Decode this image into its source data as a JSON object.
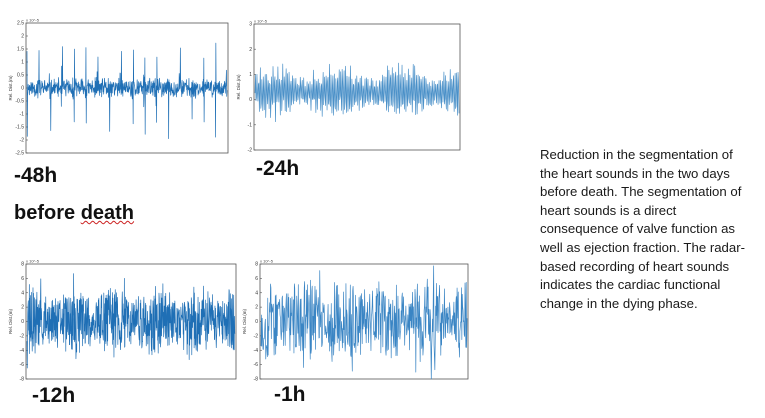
{
  "chart_data": [
    {
      "type": "line",
      "label": "-48h",
      "ylabel": "Rel. Dist.(m)",
      "exponent": "x 10^-5",
      "yticks": [
        "2.5",
        "2",
        "1.5",
        "1",
        "0.5",
        "0",
        "-0.5",
        "-1",
        "-1.5",
        "-2",
        "-2.5"
      ],
      "ylim": [
        -2.5,
        2.5
      ],
      "color": "#1f6fb5",
      "waveform": {
        "pattern": "periodic-spikes",
        "spike_count": 17,
        "spike_amplitude": 2.0,
        "baseline_amplitude": 0.3
      }
    },
    {
      "type": "line",
      "label": "-24h",
      "ylabel": "Rel. Dist.(m)",
      "exponent": "x 10^-5",
      "yticks": [
        "3",
        "2",
        "1",
        "0",
        "-1",
        "-2"
      ],
      "ylim": [
        -3,
        3.5
      ],
      "color": "#4a90c8",
      "waveform": {
        "pattern": "dense-oscillation",
        "amplitude": 1.5,
        "baseline_amplitude": 0.5
      }
    },
    {
      "type": "line",
      "label": "-12h",
      "ylabel": "Rel. Dist.(m)",
      "exponent": "x 10^-5",
      "yticks": [
        "8",
        "6",
        "4",
        "2",
        "0",
        "-2",
        "-4",
        "-6",
        "-8"
      ],
      "ylim": [
        -8,
        8
      ],
      "color": "#1f6fb5",
      "waveform": {
        "pattern": "dense-noise",
        "amplitude": 4.5,
        "baseline_amplitude": 1.5
      }
    },
    {
      "type": "line",
      "label": "-1h",
      "ylabel": "Rel. Dist.(m)",
      "exponent": "x 10^-5",
      "yticks": [
        "8",
        "6",
        "4",
        "2",
        "0",
        "-2",
        "-4",
        "-6",
        "-8"
      ],
      "ylim": [
        -8,
        8
      ],
      "color": "#3a85c4",
      "waveform": {
        "pattern": "dense-noise",
        "amplitude": 5.5,
        "baseline_amplitude": 2.0
      }
    }
  ],
  "subtitle": {
    "word1": "before",
    "word2": "death"
  },
  "caption": "Reduction in the segmentation of the heart sounds in the two days before death. The segmentation of heart sounds is a direct consequence of valve function as well as ejection fraction. The radar-based recording of heart sounds indicates the cardiac functional change in the dying phase."
}
